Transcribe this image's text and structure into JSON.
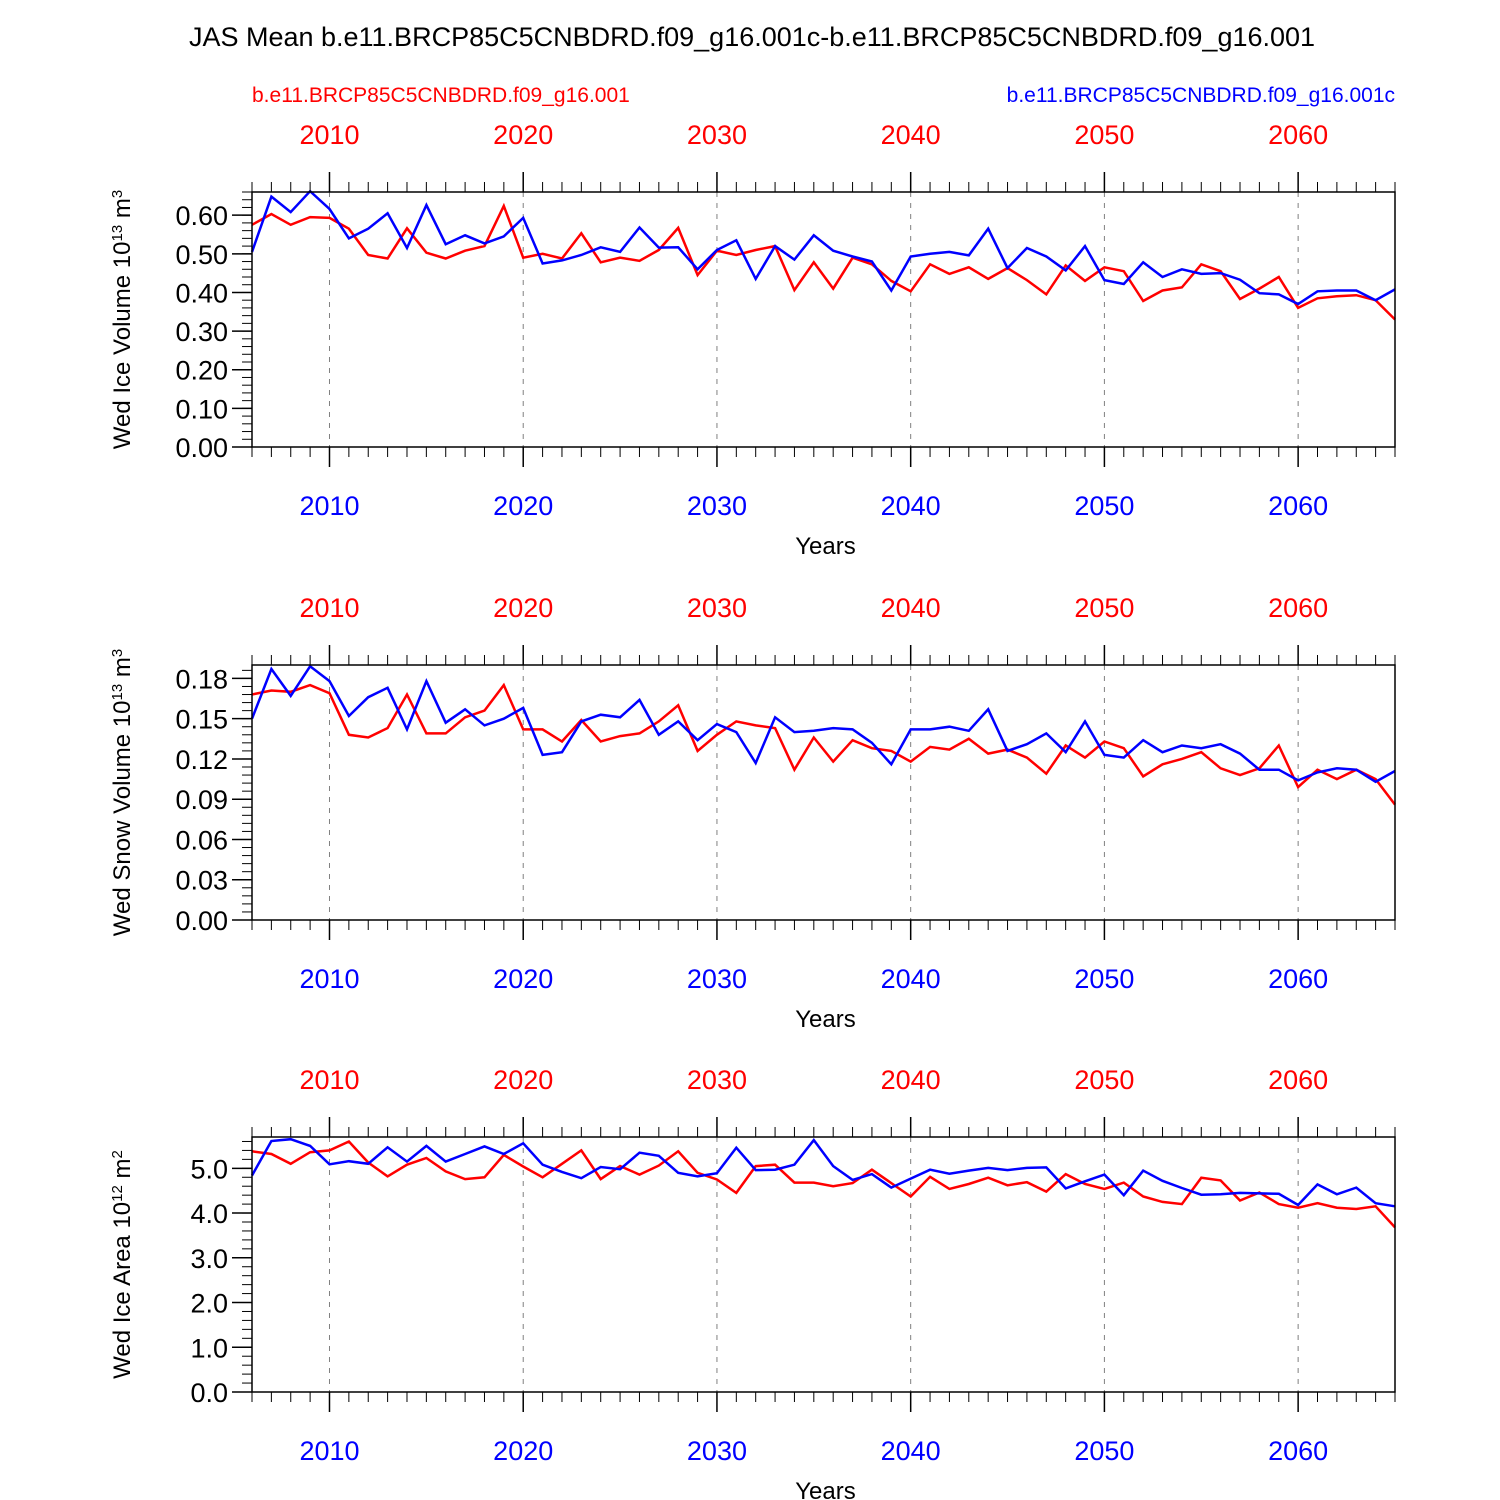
{
  "title": "JAS Mean b.e11.BRCP85C5CNBDRD.f09_g16.001c-b.e11.BRCP85C5CNBDRD.f09_g16.001",
  "legend": {
    "left_case": "b.e11.BRCP85C5CNBDRD.f09_g16.001",
    "right_case": "b.e11.BRCP85C5CNBDRD.f09_g16.001c"
  },
  "colors": {
    "case_a": "#ff0000",
    "case_b": "#0000ff",
    "axis": "#000000",
    "grid": "#808080"
  },
  "chart_data": [
    {
      "type": "line",
      "id": "ice-volume",
      "ylabel_main": "Wed Ice Volume 10",
      "ylabel_exp": "13",
      "ylabel_unit": " m",
      "ylabel_unit_exp": "3",
      "xlabel": "Years",
      "xlim": [
        2006,
        2065
      ],
      "ylim": [
        0.0,
        0.66
      ],
      "yticks": [
        0.0,
        0.1,
        0.2,
        0.3,
        0.4,
        0.5,
        0.6
      ],
      "ytick_labels": [
        "0.00",
        "0.10",
        "0.20",
        "0.30",
        "0.40",
        "0.50",
        "0.60"
      ],
      "yminor_step": 0.02,
      "xticks": [
        2010,
        2020,
        2030,
        2040,
        2050,
        2060
      ],
      "xtick_labels": [
        "2010",
        "2020",
        "2030",
        "2040",
        "2050",
        "2060"
      ],
      "x": [
        2006,
        2007,
        2008,
        2009,
        2010,
        2011,
        2012,
        2013,
        2014,
        2015,
        2016,
        2017,
        2018,
        2019,
        2020,
        2021,
        2022,
        2023,
        2024,
        2025,
        2026,
        2027,
        2028,
        2029,
        2030,
        2031,
        2032,
        2033,
        2034,
        2035,
        2036,
        2037,
        2038,
        2039,
        2040,
        2041,
        2042,
        2043,
        2044,
        2045,
        2046,
        2047,
        2048,
        2049,
        2050,
        2051,
        2052,
        2053,
        2054,
        2055,
        2056,
        2057,
        2058,
        2059,
        2060,
        2061,
        2062,
        2063,
        2064,
        2065
      ],
      "series": [
        {
          "name": "b.e11.BRCP85C5CNBDRD.f09_g16.001",
          "color": "#ff0000",
          "values": [
            0.575,
            0.603,
            0.575,
            0.595,
            0.593,
            0.565,
            0.497,
            0.488,
            0.566,
            0.503,
            0.488,
            0.508,
            0.52,
            0.624,
            0.49,
            0.5,
            0.488,
            0.553,
            0.478,
            0.49,
            0.482,
            0.51,
            0.567,
            0.445,
            0.508,
            0.497,
            0.51,
            0.52,
            0.406,
            0.478,
            0.41,
            0.49,
            0.473,
            0.43,
            0.403,
            0.473,
            0.448,
            0.465,
            0.435,
            0.463,
            0.432,
            0.395,
            0.47,
            0.43,
            0.465,
            0.455,
            0.378,
            0.405,
            0.413,
            0.473,
            0.455,
            0.383,
            0.41,
            0.44,
            0.36,
            0.385,
            0.39,
            0.393,
            0.38,
            0.33
          ]
        },
        {
          "name": "b.e11.BRCP85C5CNBDRD.f09_g16.001c",
          "color": "#0000ff",
          "values": [
            0.505,
            0.648,
            0.608,
            0.662,
            0.616,
            0.54,
            0.565,
            0.605,
            0.515,
            0.626,
            0.525,
            0.548,
            0.527,
            0.545,
            0.593,
            0.475,
            0.483,
            0.497,
            0.517,
            0.505,
            0.568,
            0.516,
            0.517,
            0.46,
            0.51,
            0.535,
            0.435,
            0.52,
            0.485,
            0.548,
            0.508,
            0.493,
            0.48,
            0.405,
            0.493,
            0.5,
            0.505,
            0.496,
            0.565,
            0.463,
            0.515,
            0.493,
            0.457,
            0.52,
            0.432,
            0.422,
            0.478,
            0.44,
            0.46,
            0.448,
            0.45,
            0.433,
            0.398,
            0.395,
            0.37,
            0.403,
            0.405,
            0.405,
            0.38,
            0.408
          ]
        }
      ]
    },
    {
      "type": "line",
      "id": "snow-volume",
      "ylabel_main": "Wed Snow Volume 10",
      "ylabel_exp": "13",
      "ylabel_unit": " m",
      "ylabel_unit_exp": "3",
      "xlabel": "Years",
      "xlim": [
        2006,
        2065
      ],
      "ylim": [
        0.0,
        0.19
      ],
      "yticks": [
        0.0,
        0.03,
        0.06,
        0.09,
        0.12,
        0.15,
        0.18
      ],
      "ytick_labels": [
        "0.00",
        "0.03",
        "0.06",
        "0.09",
        "0.12",
        "0.15",
        "0.18"
      ],
      "yminor_step": 0.006,
      "xticks": [
        2010,
        2020,
        2030,
        2040,
        2050,
        2060
      ],
      "xtick_labels": [
        "2010",
        "2020",
        "2030",
        "2040",
        "2050",
        "2060"
      ],
      "x": [
        2006,
        2007,
        2008,
        2009,
        2010,
        2011,
        2012,
        2013,
        2014,
        2015,
        2016,
        2017,
        2018,
        2019,
        2020,
        2021,
        2022,
        2023,
        2024,
        2025,
        2026,
        2027,
        2028,
        2029,
        2030,
        2031,
        2032,
        2033,
        2034,
        2035,
        2036,
        2037,
        2038,
        2039,
        2040,
        2041,
        2042,
        2043,
        2044,
        2045,
        2046,
        2047,
        2048,
        2049,
        2050,
        2051,
        2052,
        2053,
        2054,
        2055,
        2056,
        2057,
        2058,
        2059,
        2060,
        2061,
        2062,
        2063,
        2064,
        2065
      ],
      "series": [
        {
          "name": "b.e11.BRCP85C5CNBDRD.f09_g16.001",
          "color": "#ff0000",
          "values": [
            0.168,
            0.171,
            0.17,
            0.175,
            0.169,
            0.138,
            0.136,
            0.143,
            0.168,
            0.139,
            0.139,
            0.151,
            0.156,
            0.175,
            0.142,
            0.142,
            0.133,
            0.149,
            0.133,
            0.137,
            0.139,
            0.148,
            0.16,
            0.126,
            0.138,
            0.148,
            0.145,
            0.143,
            0.112,
            0.136,
            0.118,
            0.134,
            0.128,
            0.126,
            0.118,
            0.129,
            0.127,
            0.135,
            0.124,
            0.127,
            0.121,
            0.109,
            0.13,
            0.121,
            0.133,
            0.128,
            0.107,
            0.116,
            0.12,
            0.125,
            0.113,
            0.108,
            0.113,
            0.13,
            0.099,
            0.112,
            0.105,
            0.112,
            0.105,
            0.086
          ]
        },
        {
          "name": "b.e11.BRCP85C5CNBDRD.f09_g16.001c",
          "color": "#0000ff",
          "values": [
            0.15,
            0.187,
            0.167,
            0.189,
            0.178,
            0.152,
            0.166,
            0.173,
            0.142,
            0.178,
            0.147,
            0.157,
            0.145,
            0.15,
            0.158,
            0.123,
            0.125,
            0.148,
            0.153,
            0.151,
            0.164,
            0.138,
            0.148,
            0.134,
            0.146,
            0.14,
            0.117,
            0.151,
            0.14,
            0.141,
            0.143,
            0.142,
            0.132,
            0.116,
            0.142,
            0.142,
            0.144,
            0.141,
            0.157,
            0.126,
            0.131,
            0.139,
            0.125,
            0.148,
            0.123,
            0.121,
            0.134,
            0.125,
            0.13,
            0.128,
            0.131,
            0.124,
            0.112,
            0.112,
            0.104,
            0.11,
            0.113,
            0.112,
            0.103,
            0.111
          ]
        }
      ]
    },
    {
      "type": "line",
      "id": "ice-area",
      "ylabel_main": "Wed Ice Area 10",
      "ylabel_exp": "12",
      "ylabel_unit": " m",
      "ylabel_unit_exp": "2",
      "xlabel": "Years",
      "xlim": [
        2006,
        2065
      ],
      "ylim": [
        0.0,
        5.7
      ],
      "yticks": [
        0.0,
        1.0,
        2.0,
        3.0,
        4.0,
        5.0
      ],
      "ytick_labels": [
        "0.0",
        "1.0",
        "2.0",
        "3.0",
        "4.0",
        "5.0"
      ],
      "yminor_step": 0.2,
      "xticks": [
        2010,
        2020,
        2030,
        2040,
        2050,
        2060
      ],
      "xtick_labels": [
        "2010",
        "2020",
        "2030",
        "2040",
        "2050",
        "2060"
      ],
      "x": [
        2006,
        2007,
        2008,
        2009,
        2010,
        2011,
        2012,
        2013,
        2014,
        2015,
        2016,
        2017,
        2018,
        2019,
        2020,
        2021,
        2022,
        2023,
        2024,
        2025,
        2026,
        2027,
        2028,
        2029,
        2030,
        2031,
        2032,
        2033,
        2034,
        2035,
        2036,
        2037,
        2038,
        2039,
        2040,
        2041,
        2042,
        2043,
        2044,
        2045,
        2046,
        2047,
        2048,
        2049,
        2050,
        2051,
        2052,
        2053,
        2054,
        2055,
        2056,
        2057,
        2058,
        2059,
        2060,
        2061,
        2062,
        2063,
        2064,
        2065
      ],
      "series": [
        {
          "name": "b.e11.BRCP85C5CNBDRD.f09_g16.001",
          "color": "#ff0000",
          "values": [
            5.38,
            5.32,
            5.1,
            5.36,
            5.4,
            5.6,
            5.13,
            4.82,
            5.08,
            5.23,
            4.93,
            4.76,
            4.8,
            5.3,
            5.04,
            4.8,
            5.1,
            5.4,
            4.76,
            5.05,
            4.86,
            5.06,
            5.38,
            4.9,
            4.75,
            4.45,
            5.05,
            5.08,
            4.68,
            4.68,
            4.6,
            4.67,
            4.97,
            4.67,
            4.37,
            4.81,
            4.54,
            4.65,
            4.79,
            4.62,
            4.69,
            4.48,
            4.87,
            4.65,
            4.54,
            4.68,
            4.37,
            4.25,
            4.2,
            4.79,
            4.73,
            4.28,
            4.46,
            4.2,
            4.12,
            4.22,
            4.12,
            4.09,
            4.15,
            3.68
          ]
        },
        {
          "name": "b.e11.BRCP85C5CNBDRD.f09_g16.001c",
          "color": "#0000ff",
          "values": [
            4.84,
            5.61,
            5.65,
            5.5,
            5.09,
            5.16,
            5.1,
            5.47,
            5.15,
            5.5,
            5.15,
            5.32,
            5.49,
            5.32,
            5.56,
            5.08,
            4.92,
            4.78,
            5.03,
            4.98,
            5.35,
            5.28,
            4.9,
            4.82,
            4.89,
            5.46,
            4.96,
            4.97,
            5.08,
            5.63,
            5.05,
            4.74,
            4.87,
            4.57,
            4.77,
            4.97,
            4.88,
            4.95,
            5.01,
            4.96,
            5.01,
            5.02,
            4.55,
            4.71,
            4.86,
            4.4,
            4.95,
            4.72,
            4.56,
            4.41,
            4.42,
            4.45,
            4.44,
            4.43,
            4.18,
            4.64,
            4.42,
            4.57,
            4.22,
            4.15
          ]
        }
      ]
    }
  ]
}
